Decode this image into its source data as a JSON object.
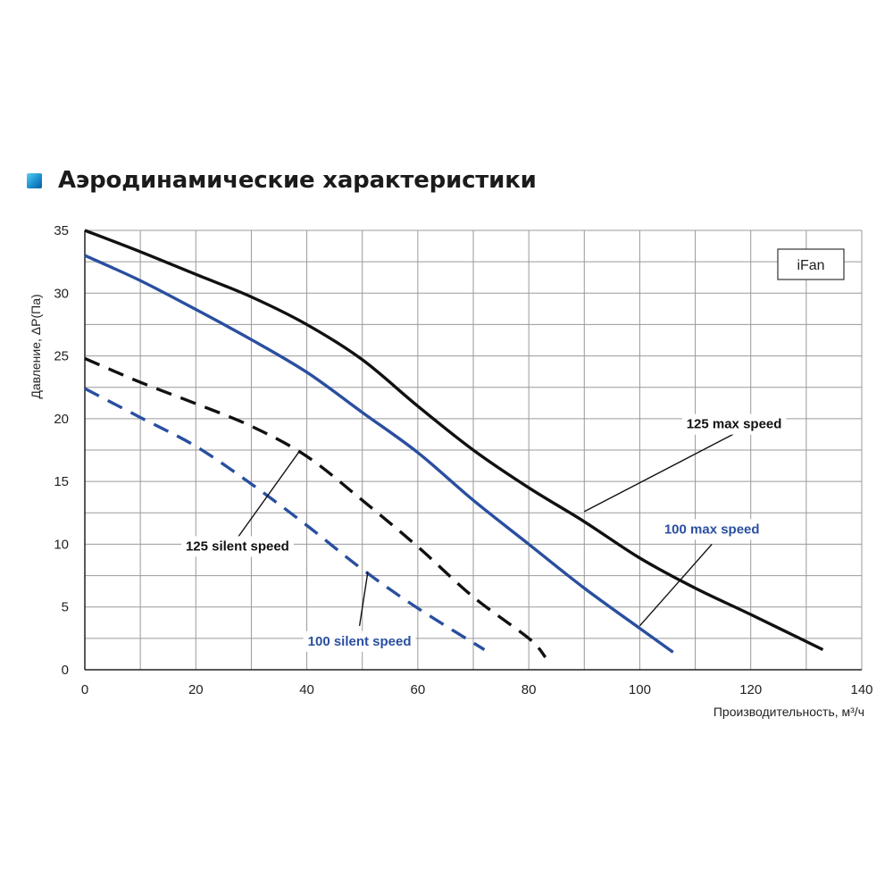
{
  "header": {
    "title": "Аэродинамические характеристики"
  },
  "chart_data": {
    "type": "line",
    "title": "",
    "xlabel": "Производительность, м³/ч",
    "ylabel": "Давление, ΔP(Па)",
    "xlim": [
      0,
      140
    ],
    "ylim": [
      0,
      35
    ],
    "x_ticks": [
      0,
      20,
      40,
      60,
      80,
      100,
      120,
      140
    ],
    "y_ticks": [
      0,
      5,
      10,
      15,
      20,
      25,
      30,
      35
    ],
    "x_minor_step": 10,
    "y_minor_step": 2.5,
    "grid": true,
    "legend_box": "iFan",
    "series": [
      {
        "name": "125 max speed",
        "color": "#111111",
        "dashed": false,
        "label_color": "#111111",
        "points": [
          [
            0,
            35
          ],
          [
            10,
            33.3
          ],
          [
            20,
            31.5
          ],
          [
            30,
            29.7
          ],
          [
            40,
            27.5
          ],
          [
            50,
            24.7
          ],
          [
            60,
            21
          ],
          [
            70,
            17.5
          ],
          [
            80,
            14.5
          ],
          [
            90,
            11.8
          ],
          [
            100,
            8.9
          ],
          [
            110,
            6.5
          ],
          [
            120,
            4.4
          ],
          [
            133,
            1.6
          ]
        ],
        "label_at": [
          90,
          12.6
        ],
        "label_anchor": [
          117,
          18.8
        ]
      },
      {
        "name": "100 max speed",
        "color": "#2a4fa0",
        "dashed": false,
        "label_color": "#2a4fa0",
        "points": [
          [
            0,
            33
          ],
          [
            10,
            31
          ],
          [
            20,
            28.7
          ],
          [
            30,
            26.3
          ],
          [
            40,
            23.7
          ],
          [
            50,
            20.5
          ],
          [
            60,
            17.3
          ],
          [
            70,
            13.5
          ],
          [
            80,
            10
          ],
          [
            90,
            6.5
          ],
          [
            100,
            3.3
          ],
          [
            106,
            1.4
          ]
        ],
        "label_at": [
          100,
          3.5
        ],
        "label_anchor": [
          113,
          10
        ]
      },
      {
        "name": "125 silent speed",
        "color": "#111111",
        "dashed": true,
        "label_color": "#111111",
        "points": [
          [
            0,
            24.8
          ],
          [
            10,
            22.9
          ],
          [
            20,
            21.2
          ],
          [
            30,
            19.4
          ],
          [
            40,
            17
          ],
          [
            50,
            13.5
          ],
          [
            60,
            9.8
          ],
          [
            70,
            5.8
          ],
          [
            80,
            2.5
          ],
          [
            83,
            1
          ]
        ],
        "label_at": [
          38.5,
          17.3
        ],
        "label_anchor": [
          27.5,
          10.5
        ]
      },
      {
        "name": "100 silent speed",
        "color": "#2a4fa0",
        "dashed": true,
        "label_color": "#2a4fa0",
        "points": [
          [
            0,
            22.4
          ],
          [
            10,
            20.1
          ],
          [
            20,
            17.8
          ],
          [
            30,
            14.8
          ],
          [
            40,
            11.5
          ],
          [
            50,
            8
          ],
          [
            60,
            4.9
          ],
          [
            72,
            1.6
          ]
        ],
        "label_at": [
          51,
          7.8
        ],
        "label_anchor": [
          49.5,
          3.5
        ]
      }
    ]
  }
}
